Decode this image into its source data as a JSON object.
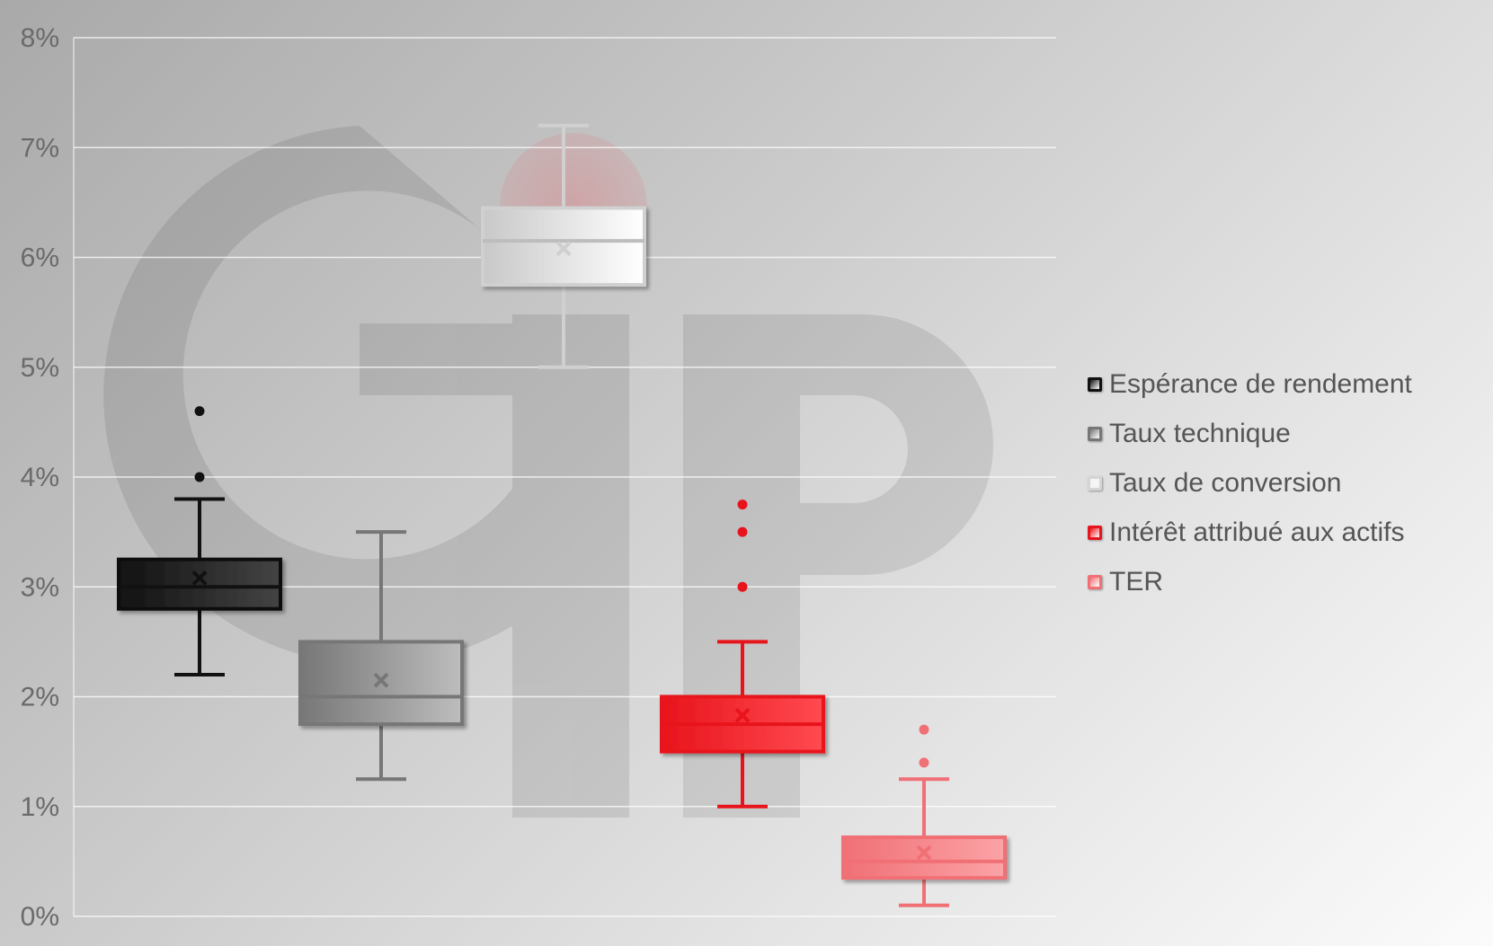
{
  "chart_data": {
    "type": "box",
    "ylim": [
      0,
      8
    ],
    "y_ticks": [
      "0%",
      "1%",
      "2%",
      "3%",
      "4%",
      "5%",
      "6%",
      "7%",
      "8%"
    ],
    "grid": true,
    "legend_position": "right",
    "watermark": "GIP",
    "series": [
      {
        "name": "Espérance de rendement",
        "color": "#111111",
        "min": 2.2,
        "q1": 2.8,
        "median": 3.0,
        "q3": 3.25,
        "max": 3.8,
        "mean": 3.08,
        "outliers": [
          4.0,
          4.6
        ]
      },
      {
        "name": "Taux technique",
        "color": "#777777",
        "min": 1.25,
        "q1": 1.75,
        "median": 2.0,
        "q3": 2.5,
        "max": 3.5,
        "mean": 2.15,
        "outliers": []
      },
      {
        "name": "Taux de conversion",
        "color": "#d9d9d9",
        "min": 5.0,
        "q1": 5.75,
        "median": 6.15,
        "q3": 6.45,
        "max": 7.2,
        "mean": 6.08,
        "outliers": []
      },
      {
        "name": "Intérêt attribué aux actifs",
        "color": "#e8141c",
        "min": 1.0,
        "q1": 1.5,
        "median": 1.75,
        "q3": 2.0,
        "max": 2.5,
        "mean": 1.83,
        "outliers": [
          3.0,
          3.5,
          3.75
        ]
      },
      {
        "name": "TER",
        "color": "#f07076",
        "min": 0.1,
        "q1": 0.35,
        "median": 0.5,
        "q3": 0.72,
        "max": 1.25,
        "mean": 0.58,
        "outliers": [
          1.4,
          1.7
        ]
      }
    ]
  }
}
